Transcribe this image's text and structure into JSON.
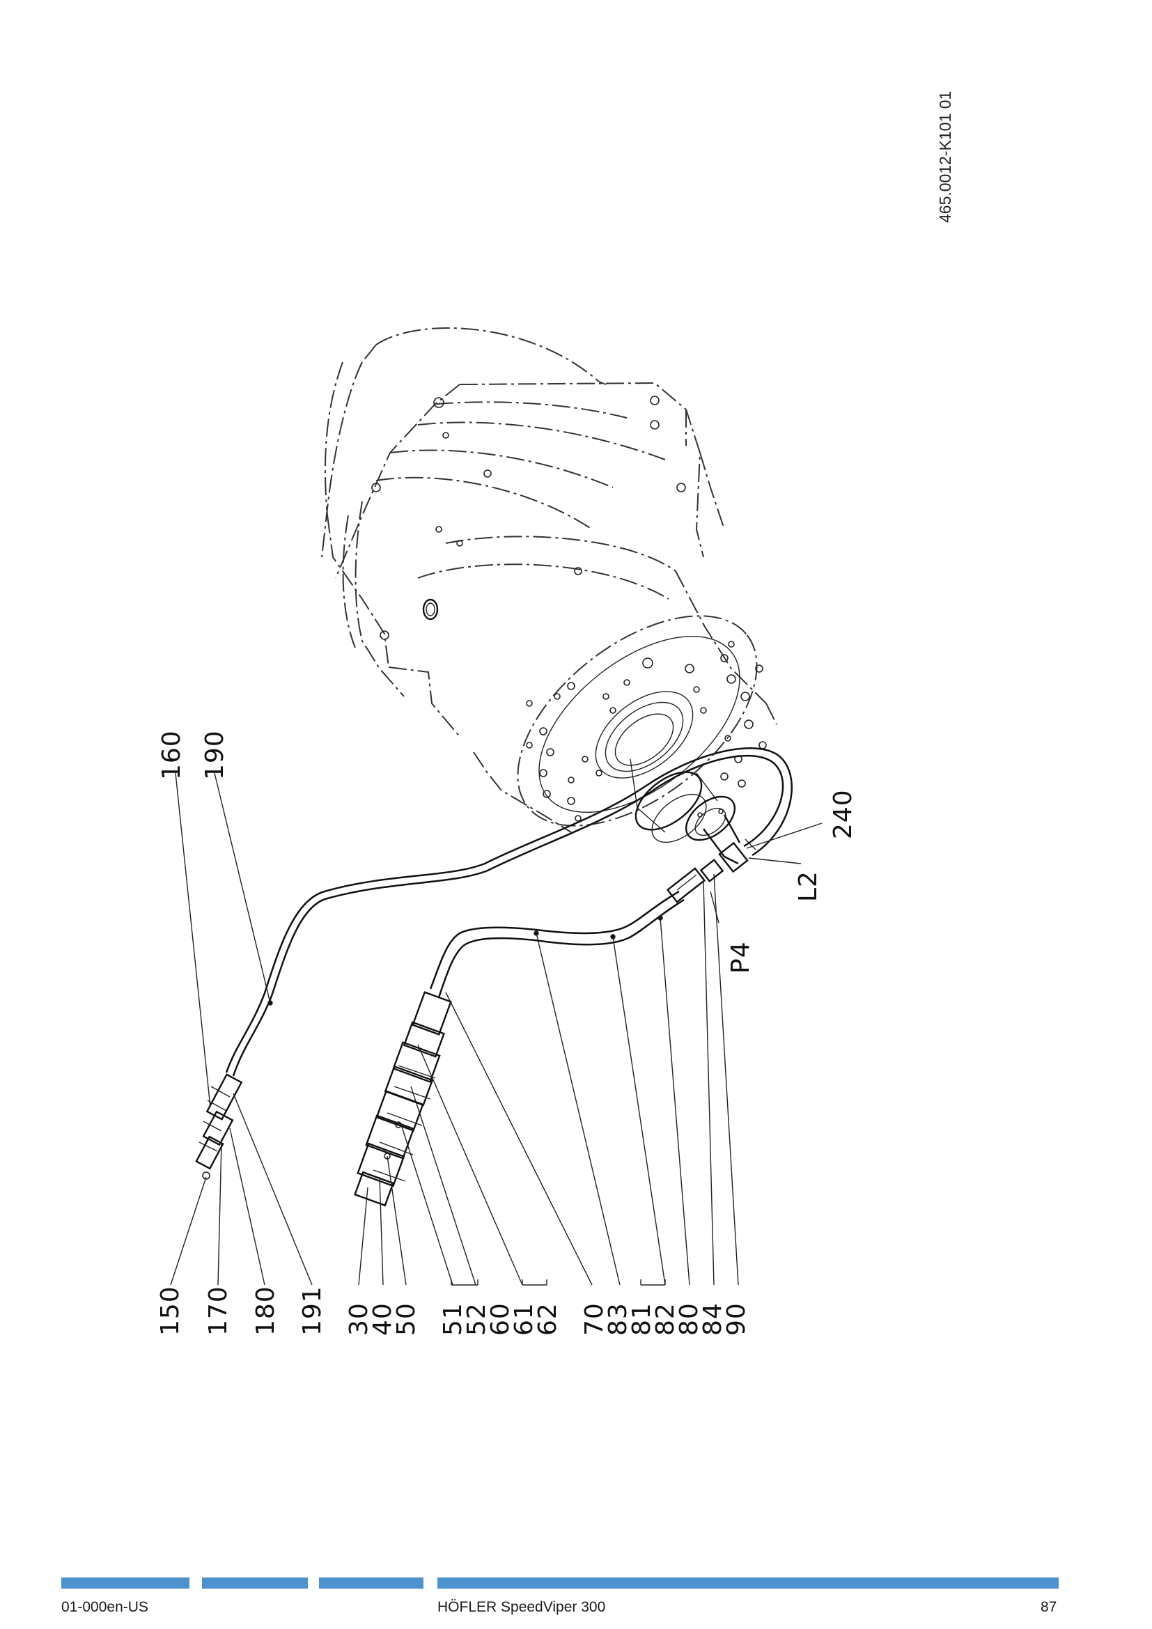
{
  "drawing": {
    "doc_number": "465.0012-K101  01",
    "callouts": {
      "c160": "160",
      "c190": "190",
      "c240": "240",
      "cL2": "L2",
      "cP4": "P4",
      "c150": "150",
      "c170": "170",
      "c180": "180",
      "c191": "191",
      "c30": "30",
      "c40": "40",
      "c50": "50",
      "c51": "51",
      "c52": "52",
      "c60": "60",
      "c61": "61",
      "c62": "62",
      "c70": "70",
      "c83": "83",
      "c81": "81",
      "c82": "82",
      "c80": "80",
      "c84": "84",
      "c90": "90"
    }
  },
  "footer": {
    "doc_code": "01-000en-US",
    "product": "HÖFLER SpeedViper 300",
    "page_number": "87",
    "bar_color": "#4e91cf"
  }
}
